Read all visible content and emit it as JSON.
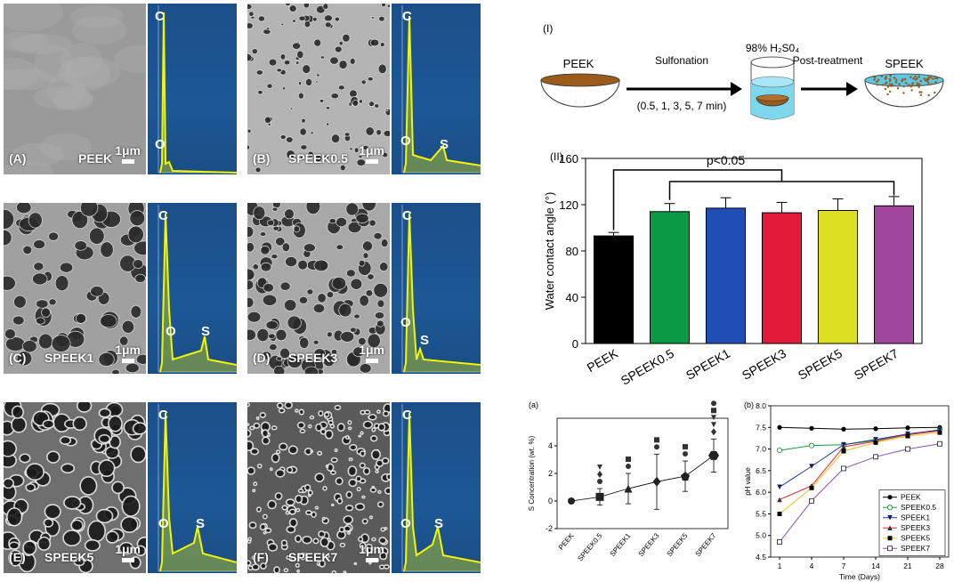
{
  "sem_panels": [
    {
      "label": "(A)",
      "sample": "PEEK",
      "scale": "1μm",
      "peaks": [
        "C",
        "O"
      ]
    },
    {
      "label": "(B)",
      "sample": "SPEEK0.5",
      "scale": "1μm",
      "peaks": [
        "C",
        "O",
        "S"
      ]
    },
    {
      "label": "(C)",
      "sample": "SPEEK1",
      "scale": "1μm",
      "peaks": [
        "C",
        "O",
        "S"
      ]
    },
    {
      "label": "(D)",
      "sample": "SPEEK3",
      "scale": "1μm",
      "peaks": [
        "C",
        "O",
        "S"
      ]
    },
    {
      "label": "(E)",
      "sample": "SPEEK5",
      "scale": "1μm",
      "peaks": [
        "C",
        "O",
        "S"
      ]
    },
    {
      "label": "(F)",
      "sample": "SPEEK7",
      "scale": "1μm",
      "peaks": [
        "C",
        "O",
        "S"
      ]
    }
  ],
  "scheme": {
    "numeral": "(I)",
    "start": "PEEK",
    "step1": "Sulfonation",
    "step1_times": "(0.5, 1, 3, 5, 7 min)",
    "acid": "98% H₂S0₄",
    "step2": "Post-treatment",
    "end": "SPEEK"
  },
  "chart_data": [
    {
      "type": "bar",
      "numeral": "(II)",
      "categories": [
        "PEEK",
        "SPEEK0.5",
        "SPEEK1",
        "SPEEK3",
        "SPEEK5",
        "SPEEK7"
      ],
      "values": [
        93,
        114,
        117,
        113,
        115,
        119
      ],
      "errors": [
        3,
        7,
        9,
        9,
        10,
        8
      ],
      "colors": [
        "#000000",
        "#0a9a46",
        "#1f4fb4",
        "#e21b3a",
        "#dde020",
        "#a0479e"
      ],
      "ylabel": "Water contact angle (°)",
      "ylim": [
        0,
        160
      ],
      "yticks": [
        0,
        40,
        80,
        120,
        160
      ],
      "annotation": "p<0.05"
    },
    {
      "type": "line",
      "panel": "(a)",
      "categories": [
        "PEEK",
        "SPEEK0.5",
        "SPEEK1",
        "SPEEK3",
        "SPEEK5",
        "SPEEK7"
      ],
      "values": [
        0,
        0.3,
        0.9,
        1.4,
        1.8,
        3.3
      ],
      "errors": [
        0,
        0.6,
        1.1,
        2.0,
        1.1,
        1.2
      ],
      "ylabel": "S Concentration (wt. %)",
      "ylim": [
        -2,
        6
      ],
      "yticks": [
        -2,
        0,
        2,
        4
      ]
    },
    {
      "type": "line",
      "panel": "(b)",
      "x": [
        "1",
        "4",
        "7",
        "14",
        "21",
        "28"
      ],
      "xlabel": "Time (Days)",
      "ylabel": "pH value",
      "ylim": [
        4.5,
        8.0
      ],
      "yticks": [
        "4.5",
        "5.0",
        "5.5",
        "6.0",
        "6.5",
        "7.0",
        "7.5",
        "8.0"
      ],
      "legend_position": "bottom-right",
      "series": [
        {
          "name": "PEEK",
          "values": [
            7.5,
            7.48,
            7.46,
            7.47,
            7.49,
            7.5
          ],
          "color": "#000000",
          "marker": "circle-filled"
        },
        {
          "name": "SPEEK0.5",
          "values": [
            6.97,
            7.08,
            7.1,
            7.2,
            7.33,
            7.45
          ],
          "color": "#1b9a3a",
          "marker": "circle-open"
        },
        {
          "name": "SPEEK1",
          "values": [
            6.12,
            6.6,
            7.1,
            7.22,
            7.35,
            7.44
          ],
          "color": "#1f3aa0",
          "marker": "triangle-down"
        },
        {
          "name": "SPEEK3",
          "values": [
            5.83,
            6.15,
            7.05,
            7.18,
            7.33,
            7.42
          ],
          "color": "#e0282e",
          "marker": "triangle-up"
        },
        {
          "name": "SPEEK5",
          "values": [
            5.5,
            6.1,
            6.95,
            7.15,
            7.3,
            7.38
          ],
          "color": "#f0c020",
          "marker": "square-filled"
        },
        {
          "name": "SPEEK7",
          "values": [
            4.85,
            5.8,
            6.55,
            6.82,
            7.0,
            7.12
          ],
          "color": "#8a4fb8",
          "marker": "square-open"
        }
      ]
    }
  ]
}
